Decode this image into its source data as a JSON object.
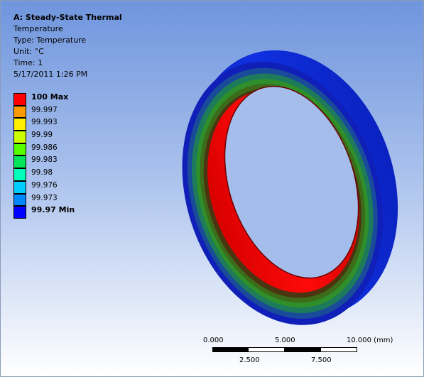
{
  "info": {
    "title": "A: Steady-State Thermal",
    "result": "Temperature",
    "type": "Type: Temperature",
    "unit": "Unit: °C",
    "time": "Time: 1",
    "timestamp": "5/17/2011 1:26 PM"
  },
  "legend": {
    "items": [
      {
        "label": "100 Max",
        "color": "#ff0000",
        "bold": true
      },
      {
        "label": "99.997",
        "color": "#ff9900"
      },
      {
        "label": "99.993",
        "color": "#ffee00"
      },
      {
        "label": "99.99",
        "color": "#ccff00"
      },
      {
        "label": "99.986",
        "color": "#55ff00"
      },
      {
        "label": "99.983",
        "color": "#00e55a"
      },
      {
        "label": "99.98",
        "color": "#00ffbb"
      },
      {
        "label": "99.976",
        "color": "#00ccff"
      },
      {
        "label": "99.973",
        "color": "#0088ff"
      },
      {
        "label": "99.97 Min",
        "color": "#0000ff",
        "bold": true
      }
    ]
  },
  "scale_bar": {
    "top_labels": [
      "0.000",
      "5.000",
      "10.000 (mm)"
    ],
    "bottom_labels": [
      "2.500",
      "7.500"
    ]
  },
  "colors": {
    "outer_ring": "#0a1ed6",
    "inner_face": "#ff0000"
  }
}
